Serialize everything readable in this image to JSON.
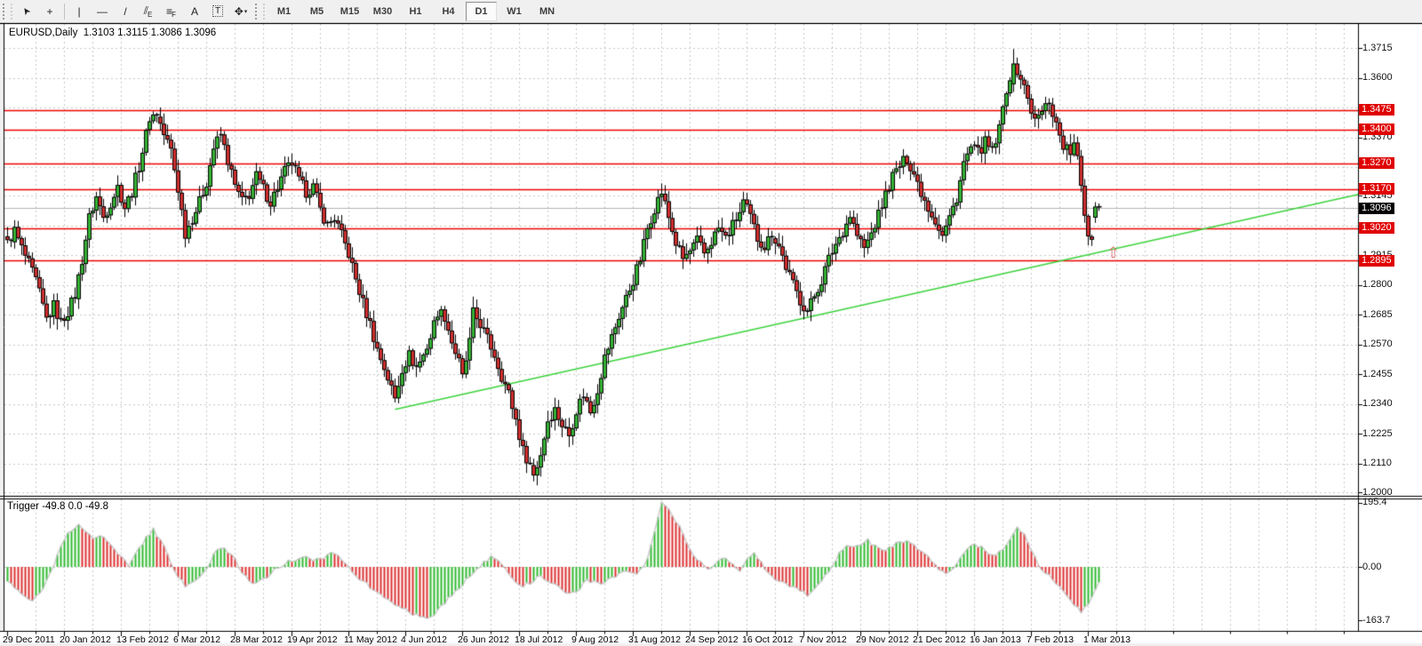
{
  "toolbar": {
    "tools": [
      {
        "id": "cursor",
        "glyph": "➤",
        "style": "rot"
      },
      {
        "id": "crosshair",
        "glyph": "+",
        "style": ""
      },
      {
        "id": "vertical-line",
        "glyph": "|",
        "style": ""
      },
      {
        "id": "horizontal-line",
        "glyph": "—",
        "style": ""
      },
      {
        "id": "trendline",
        "glyph": "/",
        "style": ""
      },
      {
        "id": "equidistant-channel",
        "glyph": "⫽",
        "sub": "E",
        "style": ""
      },
      {
        "id": "fibonacci",
        "glyph": "≡",
        "sub": "F",
        "style": ""
      },
      {
        "id": "text",
        "glyph": "A",
        "style": ""
      },
      {
        "id": "text-label",
        "glyph": "T",
        "style": "boxed"
      },
      {
        "id": "arrows",
        "glyph": "✥",
        "style": "",
        "dropdown": "▾"
      }
    ],
    "timeframes": [
      "M1",
      "M5",
      "M15",
      "M30",
      "H1",
      "H4",
      "D1",
      "W1",
      "MN"
    ],
    "active_timeframe": "D1"
  },
  "header": {
    "symbol_period": "EURUSD,Daily",
    "ohlc_text": "1.3103 1.3115 1.3086 1.3096"
  },
  "indicator_panel": {
    "title": "Trigger -49.8 0.0 -49.8",
    "axis_labels": [
      "195.4",
      "0.00",
      "-163.7"
    ],
    "axis_values": [
      195.4,
      0.0,
      -163.7
    ]
  },
  "price_axis": {
    "tick_labels": [
      "1.3715",
      "1.3600",
      "1.3370",
      "1.3145",
      "1.2915",
      "1.2800",
      "1.2685",
      "1.2570",
      "1.2455",
      "1.2340",
      "1.2225",
      "1.2110",
      "1.2000"
    ],
    "level_labels": [
      "1.3475",
      "1.3400",
      "1.3270",
      "1.3170",
      "1.3020",
      "1.2895"
    ],
    "current_label": "1.3096"
  },
  "time_axis": {
    "labels": [
      "29 Dec 2011",
      "20 Jan 2012",
      "13 Feb 2012",
      "6 Mar 2012",
      "28 Mar 2012",
      "19 Apr 2012",
      "11 May 2012",
      "4 Jun 2012",
      "26 Jun 2012",
      "18 Jul 2012",
      "9 Aug 2012",
      "31 Aug 2012",
      "24 Sep 2012",
      "16 Oct 2012",
      "7 Nov 2012",
      "29 Nov 2012",
      "21 Dec 2012",
      "16 Jan 2013",
      "7 Feb 2013",
      "1 Mar 2013"
    ]
  },
  "colors": {
    "candle_up": "#35b135",
    "candle_down": "#cc2e2e",
    "candle_outline": "#000000",
    "level_line": "#ee0202",
    "level_label_bg": "#e00000",
    "current_line": "#b4b4b4",
    "current_label_bg": "#000000",
    "trend_line": "#3dd33d",
    "trigger_line": "#c4c4c4",
    "hist_up": "#33bb33",
    "hist_down": "#dd3333",
    "grid": "#c8c8c8",
    "marker": "#da6a6a"
  },
  "chart_data": {
    "type": "candlestick",
    "symbol": "EURUSD",
    "timeframe": "Daily",
    "bar_count": 308,
    "ylim": [
      1.2,
      1.3715
    ],
    "grid_levels": [
      1.2,
      1.211,
      1.2225,
      1.234,
      1.2455,
      1.257,
      1.2685,
      1.28,
      1.2915,
      1.303,
      1.3145,
      1.3255,
      1.337,
      1.3485,
      1.36,
      1.3715
    ],
    "horizontal_levels": [
      1.3475,
      1.34,
      1.327,
      1.317,
      1.302,
      1.2895
    ],
    "current_price": 1.3096,
    "last_ohlc": {
      "open": 1.3103,
      "high": 1.3115,
      "low": 1.3086,
      "close": 1.3096
    },
    "trendline": {
      "from": {
        "bar": 109,
        "price": 1.232
      },
      "to": {
        "bar": 380,
        "price": 1.315
      }
    },
    "marker": {
      "bar": 311,
      "price": 1.292,
      "glyph": "⇧"
    },
    "close_anchors": [
      [
        0,
        1.2958
      ],
      [
        2,
        1.301
      ],
      [
        4,
        1.294
      ],
      [
        6,
        1.288
      ],
      [
        8,
        1.2815
      ],
      [
        11,
        1.2667
      ],
      [
        13,
        1.272
      ],
      [
        15,
        1.2655
      ],
      [
        17,
        1.27
      ],
      [
        19,
        1.276
      ],
      [
        21,
        1.29
      ],
      [
        23,
        1.306
      ],
      [
        25,
        1.314
      ],
      [
        27,
        1.306
      ],
      [
        29,
        1.312
      ],
      [
        31,
        1.318
      ],
      [
        33,
        1.31
      ],
      [
        35,
        1.316
      ],
      [
        37,
        1.326
      ],
      [
        39,
        1.338
      ],
      [
        40,
        1.345
      ],
      [
        42,
        1.346
      ],
      [
        44,
        1.338
      ],
      [
        46,
        1.332
      ],
      [
        48,
        1.317
      ],
      [
        50,
        1.3
      ],
      [
        52,
        1.306
      ],
      [
        54,
        1.312
      ],
      [
        56,
        1.32
      ],
      [
        58,
        1.333
      ],
      [
        60,
        1.338
      ],
      [
        62,
        1.328
      ],
      [
        64,
        1.318
      ],
      [
        66,
        1.312
      ],
      [
        68,
        1.315
      ],
      [
        70,
        1.322
      ],
      [
        72,
        1.317
      ],
      [
        74,
        1.312
      ],
      [
        76,
        1.318
      ],
      [
        78,
        1.324
      ],
      [
        80,
        1.327
      ],
      [
        82,
        1.32
      ],
      [
        84,
        1.316
      ],
      [
        86,
        1.318
      ],
      [
        88,
        1.309
      ],
      [
        90,
        1.303
      ],
      [
        92,
        1.306
      ],
      [
        94,
        1.299
      ],
      [
        96,
        1.292
      ],
      [
        98,
        1.282
      ],
      [
        100,
        1.273
      ],
      [
        102,
        1.265
      ],
      [
        104,
        1.255
      ],
      [
        106,
        1.248
      ],
      [
        108,
        1.24
      ],
      [
        109,
        1.236
      ],
      [
        111,
        1.248
      ],
      [
        113,
        1.253
      ],
      [
        115,
        1.248
      ],
      [
        117,
        1.253
      ],
      [
        119,
        1.26
      ],
      [
        121,
        1.27
      ],
      [
        123,
        1.268
      ],
      [
        125,
        1.258
      ],
      [
        127,
        1.25
      ],
      [
        128,
        1.244
      ],
      [
        130,
        1.258
      ],
      [
        131,
        1.269
      ],
      [
        133,
        1.265
      ],
      [
        135,
        1.259
      ],
      [
        137,
        1.253
      ],
      [
        139,
        1.245
      ],
      [
        141,
        1.238
      ],
      [
        143,
        1.228
      ],
      [
        145,
        1.216
      ],
      [
        147,
        1.211
      ],
      [
        148,
        1.206
      ],
      [
        150,
        1.215
      ],
      [
        152,
        1.228
      ],
      [
        154,
        1.232
      ],
      [
        156,
        1.226
      ],
      [
        158,
        1.222
      ],
      [
        160,
        1.232
      ],
      [
        162,
        1.238
      ],
      [
        164,
        1.231
      ],
      [
        166,
        1.24
      ],
      [
        168,
        1.252
      ],
      [
        170,
        1.26
      ],
      [
        172,
        1.268
      ],
      [
        174,
        1.275
      ],
      [
        176,
        1.282
      ],
      [
        178,
        1.29
      ],
      [
        180,
        1.302
      ],
      [
        182,
        1.31
      ],
      [
        184,
        1.316
      ],
      [
        186,
        1.306
      ],
      [
        188,
        1.296
      ],
      [
        190,
        1.29
      ],
      [
        192,
        1.293
      ],
      [
        194,
        1.297
      ],
      [
        196,
        1.292
      ],
      [
        198,
        1.297
      ],
      [
        200,
        1.302
      ],
      [
        202,
        1.298
      ],
      [
        204,
        1.303
      ],
      [
        206,
        1.308
      ],
      [
        207,
        1.312
      ],
      [
        209,
        1.306
      ],
      [
        211,
        1.298
      ],
      [
        213,
        1.295
      ],
      [
        215,
        1.3
      ],
      [
        217,
        1.295
      ],
      [
        219,
        1.287
      ],
      [
        221,
        1.28
      ],
      [
        223,
        1.274
      ],
      [
        225,
        1.27
      ],
      [
        227,
        1.276
      ],
      [
        229,
        1.282
      ],
      [
        231,
        1.29
      ],
      [
        233,
        1.296
      ],
      [
        235,
        1.301
      ],
      [
        237,
        1.307
      ],
      [
        239,
        1.299
      ],
      [
        241,
        1.294
      ],
      [
        243,
        1.3
      ],
      [
        245,
        1.307
      ],
      [
        247,
        1.315
      ],
      [
        249,
        1.322
      ],
      [
        251,
        1.326
      ],
      [
        253,
        1.329
      ],
      [
        255,
        1.323
      ],
      [
        257,
        1.316
      ],
      [
        259,
        1.31
      ],
      [
        261,
        1.305
      ],
      [
        263,
        1.299
      ],
      [
        265,
        1.306
      ],
      [
        267,
        1.314
      ],
      [
        269,
        1.327
      ],
      [
        271,
        1.333
      ],
      [
        273,
        1.331
      ],
      [
        275,
        1.335
      ],
      [
        277,
        1.331
      ],
      [
        279,
        1.34
      ],
      [
        281,
        1.356
      ],
      [
        283,
        1.366
      ],
      [
        285,
        1.36
      ],
      [
        287,
        1.352
      ],
      [
        289,
        1.343
      ],
      [
        291,
        1.347
      ],
      [
        293,
        1.351
      ],
      [
        295,
        1.342
      ],
      [
        297,
        1.334
      ],
      [
        299,
        1.331
      ],
      [
        300,
        1.334
      ],
      [
        301,
        1.328
      ],
      [
        302,
        1.318
      ],
      [
        303,
        1.308
      ],
      [
        304,
        1.3
      ],
      [
        305,
        1.298
      ],
      [
        306,
        1.3103
      ],
      [
        307,
        1.3096
      ]
    ],
    "exact_bars": {
      "148": [
        1.2105,
        1.213,
        1.2042,
        1.2065
      ],
      "283": [
        1.3575,
        1.3711,
        1.3545,
        1.3655
      ],
      "306": [
        1.306,
        1.312,
        1.304,
        1.3103
      ],
      "307": [
        1.3103,
        1.3115,
        1.3086,
        1.3096
      ]
    },
    "oscillator": {
      "name": "Trigger",
      "current_values": [
        -49.8,
        0.0,
        -49.8
      ],
      "range": [
        195.4,
        -163.7
      ],
      "anchors": [
        [
          0,
          -40
        ],
        [
          3,
          -70
        ],
        [
          6,
          -105
        ],
        [
          9,
          -85
        ],
        [
          11,
          -45
        ],
        [
          13,
          5
        ],
        [
          15,
          60
        ],
        [
          17,
          100
        ],
        [
          20,
          130
        ],
        [
          22,
          112
        ],
        [
          24,
          92
        ],
        [
          26,
          98
        ],
        [
          28,
          80
        ],
        [
          31,
          40
        ],
        [
          34,
          5
        ],
        [
          36,
          40
        ],
        [
          39,
          90
        ],
        [
          41,
          115
        ],
        [
          44,
          60
        ],
        [
          47,
          -15
        ],
        [
          50,
          -60
        ],
        [
          53,
          -38
        ],
        [
          56,
          -8
        ],
        [
          58,
          35
        ],
        [
          60,
          62
        ],
        [
          62,
          48
        ],
        [
          64,
          20
        ],
        [
          66,
          -15
        ],
        [
          69,
          -50
        ],
        [
          72,
          -38
        ],
        [
          75,
          -12
        ],
        [
          78,
          12
        ],
        [
          81,
          20
        ],
        [
          84,
          28
        ],
        [
          86,
          15
        ],
        [
          89,
          30
        ],
        [
          91,
          48
        ],
        [
          93,
          35
        ],
        [
          95,
          15
        ],
        [
          97,
          -12
        ],
        [
          100,
          -45
        ],
        [
          103,
          -70
        ],
        [
          106,
          -95
        ],
        [
          109,
          -112
        ],
        [
          112,
          -130
        ],
        [
          115,
          -148
        ],
        [
          118,
          -162
        ],
        [
          120,
          -142
        ],
        [
          123,
          -108
        ],
        [
          126,
          -75
        ],
        [
          129,
          -40
        ],
        [
          132,
          -10
        ],
        [
          134,
          16
        ],
        [
          136,
          28
        ],
        [
          138,
          15
        ],
        [
          140,
          -8
        ],
        [
          143,
          -42
        ],
        [
          145,
          -58
        ],
        [
          148,
          -44
        ],
        [
          150,
          -26
        ],
        [
          153,
          -48
        ],
        [
          156,
          -72
        ],
        [
          158,
          -86
        ],
        [
          161,
          -64
        ],
        [
          163,
          -38
        ],
        [
          166,
          -52
        ],
        [
          169,
          -40
        ],
        [
          172,
          -20
        ],
        [
          174,
          -8
        ],
        [
          176,
          -24
        ],
        [
          178,
          -12
        ],
        [
          180,
          25
        ],
        [
          182,
          110
        ],
        [
          184,
          192
        ],
        [
          186,
          172
        ],
        [
          188,
          140
        ],
        [
          190,
          100
        ],
        [
          192,
          55
        ],
        [
          194,
          22
        ],
        [
          196,
          2
        ],
        [
          198,
          -8
        ],
        [
          200,
          18
        ],
        [
          202,
          32
        ],
        [
          204,
          8
        ],
        [
          206,
          -12
        ],
        [
          208,
          28
        ],
        [
          210,
          40
        ],
        [
          212,
          12
        ],
        [
          214,
          -18
        ],
        [
          216,
          -35
        ],
        [
          219,
          -55
        ],
        [
          222,
          -70
        ],
        [
          225,
          -84
        ],
        [
          228,
          -55
        ],
        [
          230,
          -25
        ],
        [
          232,
          5
        ],
        [
          234,
          40
        ],
        [
          236,
          64
        ],
        [
          238,
          58
        ],
        [
          240,
          62
        ],
        [
          242,
          80
        ],
        [
          244,
          65
        ],
        [
          246,
          48
        ],
        [
          248,
          60
        ],
        [
          250,
          72
        ],
        [
          252,
          80
        ],
        [
          254,
          70
        ],
        [
          256,
          55
        ],
        [
          258,
          42
        ],
        [
          260,
          20
        ],
        [
          262,
          -8
        ],
        [
          264,
          -15
        ],
        [
          266,
          -5
        ],
        [
          268,
          28
        ],
        [
          270,
          55
        ],
        [
          272,
          66
        ],
        [
          274,
          58
        ],
        [
          276,
          40
        ],
        [
          278,
          30
        ],
        [
          280,
          55
        ],
        [
          282,
          90
        ],
        [
          284,
          118
        ],
        [
          286,
          95
        ],
        [
          288,
          55
        ],
        [
          290,
          5
        ],
        [
          292,
          -15
        ],
        [
          294,
          -35
        ],
        [
          296,
          -60
        ],
        [
          298,
          -90
        ],
        [
          300,
          -120
        ],
        [
          302,
          -135
        ],
        [
          304,
          -115
        ],
        [
          305,
          -95
        ],
        [
          306,
          -70
        ],
        [
          307,
          -50
        ]
      ]
    }
  }
}
